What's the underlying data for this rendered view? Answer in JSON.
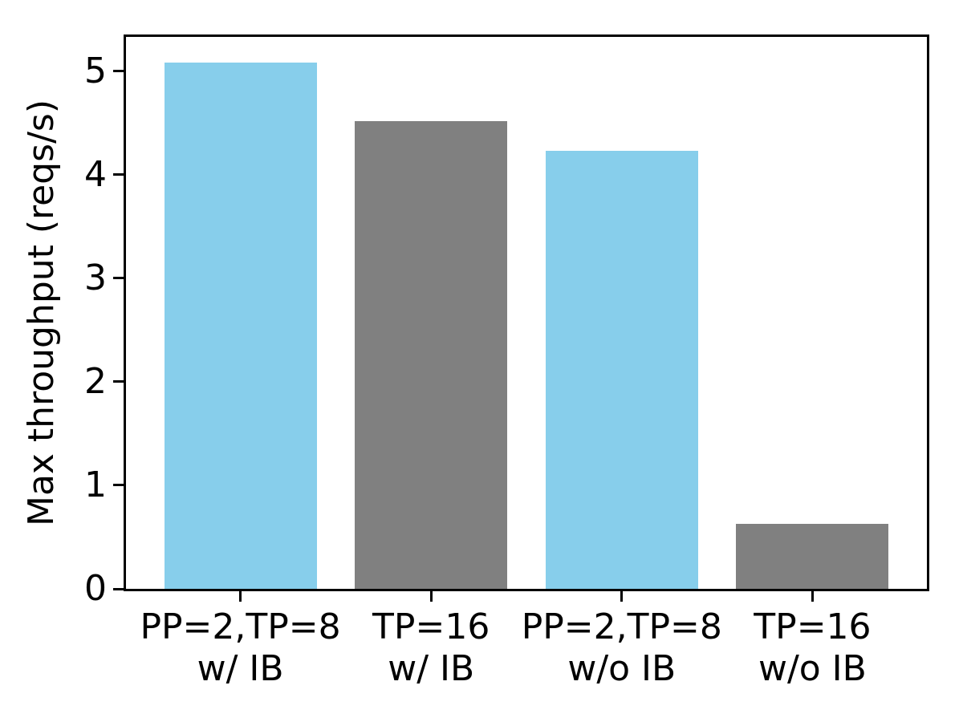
{
  "chart_data": {
    "type": "bar",
    "title": "",
    "xlabel": "",
    "ylabel": "Max throughput (reqs/s)",
    "categories": [
      "PP=2,TP=8\nw/ IB",
      "TP=16\nw/ IB",
      "PP=2,TP=8\nw/o IB",
      "TP=16\nw/o IB"
    ],
    "values": [
      5.08,
      4.52,
      4.23,
      0.63
    ],
    "bar_colors": [
      "#87CEEB",
      "#808080",
      "#87CEEB",
      "#808080"
    ],
    "yticks": [
      0,
      1,
      2,
      3,
      4,
      5
    ],
    "ylim": [
      0,
      5.33
    ],
    "grid": false,
    "legend": "none",
    "colors": {
      "highlight_bar": "#87CEEB",
      "baseline_bar": "#808080",
      "axis": "#000000",
      "background": "#ffffff"
    }
  }
}
